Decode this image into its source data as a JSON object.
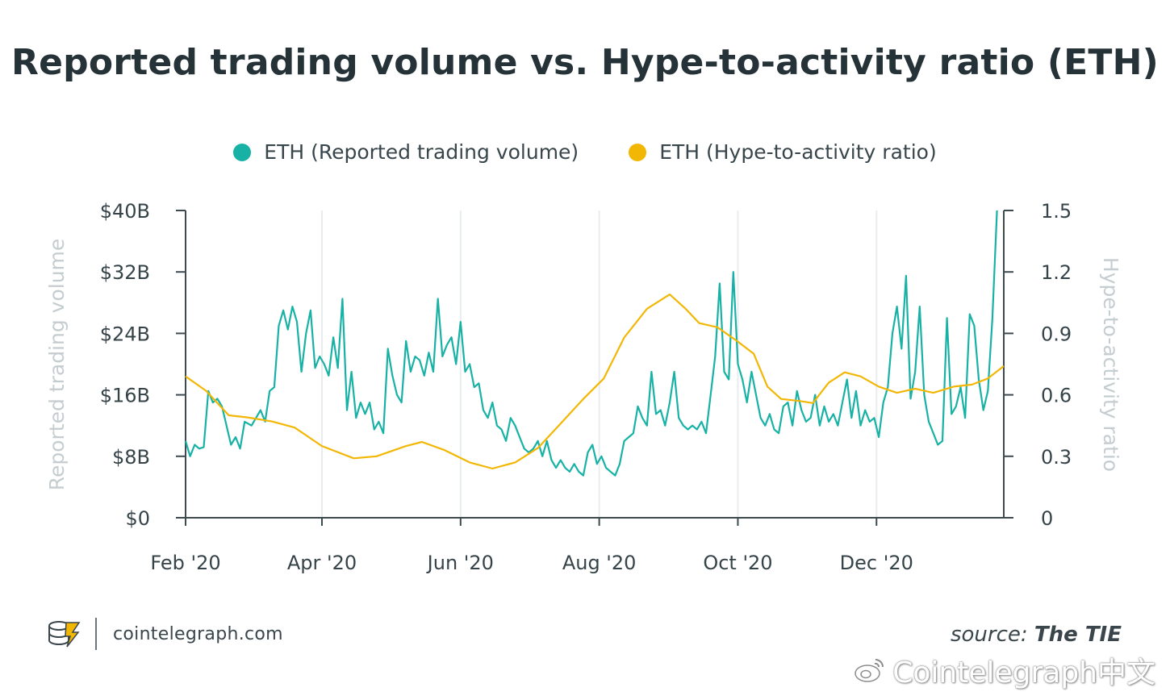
{
  "title": "Reported trading volume vs. Hype-to-activity ratio (ETH)",
  "legend": [
    {
      "label": "ETH (Reported trading volume)",
      "color": "#17b2a5"
    },
    {
      "label": "ETH (Hype-to-activity ratio)",
      "color": "#f2b705"
    }
  ],
  "footer": {
    "site": "cointelegraph.com",
    "source_prefix": "source:",
    "source_name": "The TIE",
    "watermark": "Cointelegraph中文"
  },
  "chart_data": {
    "type": "line",
    "x_range": [
      "2020-02-01",
      "2021-01-26"
    ],
    "x_tick_labels": [
      "Feb '20",
      "Apr '20",
      "Jun '20",
      "Aug '20",
      "Oct '20",
      "Dec '20"
    ],
    "y_left": {
      "label": "Reported trading volume",
      "ticks": [
        "$0",
        "$8B",
        "$16B",
        "$24B",
        "$32B",
        "$40B"
      ],
      "range": [
        0,
        40
      ]
    },
    "y_right": {
      "label": "Hype-to-activity ratio",
      "ticks": [
        "0",
        "0.3",
        "0.6",
        "0.9",
        "1.2",
        "1.5"
      ],
      "range": [
        0,
        1.5
      ]
    },
    "grid": "vertical",
    "series": [
      {
        "name": "ETH (Reported trading volume)",
        "axis": "left",
        "unit": "$B",
        "points": [
          [
            "2020-02-01",
            10.0
          ],
          [
            "2020-02-03",
            8.0
          ],
          [
            "2020-02-05",
            9.5
          ],
          [
            "2020-02-07",
            9.0
          ],
          [
            "2020-02-09",
            9.2
          ],
          [
            "2020-02-11",
            16.5
          ],
          [
            "2020-02-13",
            15.0
          ],
          [
            "2020-02-15",
            15.5
          ],
          [
            "2020-02-17",
            14.5
          ],
          [
            "2020-02-19",
            12.0
          ],
          [
            "2020-02-21",
            9.5
          ],
          [
            "2020-02-23",
            10.5
          ],
          [
            "2020-02-25",
            9.0
          ],
          [
            "2020-02-27",
            12.5
          ],
          [
            "2020-03-01",
            12.0
          ],
          [
            "2020-03-03",
            13.0
          ],
          [
            "2020-03-05",
            14.0
          ],
          [
            "2020-03-07",
            12.5
          ],
          [
            "2020-03-09",
            16.5
          ],
          [
            "2020-03-11",
            17.0
          ],
          [
            "2020-03-13",
            25.0
          ],
          [
            "2020-03-15",
            27.0
          ],
          [
            "2020-03-17",
            24.5
          ],
          [
            "2020-03-19",
            27.5
          ],
          [
            "2020-03-21",
            25.5
          ],
          [
            "2020-03-23",
            19.0
          ],
          [
            "2020-03-25",
            24.0
          ],
          [
            "2020-03-27",
            27.0
          ],
          [
            "2020-03-29",
            19.5
          ],
          [
            "2020-03-31",
            21.0
          ],
          [
            "2020-04-02",
            20.0
          ],
          [
            "2020-04-04",
            18.5
          ],
          [
            "2020-04-06",
            23.5
          ],
          [
            "2020-04-08",
            19.5
          ],
          [
            "2020-04-10",
            28.5
          ],
          [
            "2020-04-12",
            14.0
          ],
          [
            "2020-04-14",
            19.0
          ],
          [
            "2020-04-16",
            13.0
          ],
          [
            "2020-04-18",
            15.0
          ],
          [
            "2020-04-20",
            13.5
          ],
          [
            "2020-04-22",
            15.0
          ],
          [
            "2020-04-24",
            11.5
          ],
          [
            "2020-04-26",
            12.5
          ],
          [
            "2020-04-28",
            11.0
          ],
          [
            "2020-04-30",
            22.0
          ],
          [
            "2020-05-02",
            18.5
          ],
          [
            "2020-05-04",
            16.0
          ],
          [
            "2020-05-06",
            15.0
          ],
          [
            "2020-05-08",
            23.0
          ],
          [
            "2020-05-10",
            19.0
          ],
          [
            "2020-05-12",
            21.0
          ],
          [
            "2020-05-14",
            20.5
          ],
          [
            "2020-05-16",
            18.5
          ],
          [
            "2020-05-18",
            21.5
          ],
          [
            "2020-05-20",
            19.0
          ],
          [
            "2020-05-22",
            28.5
          ],
          [
            "2020-05-24",
            21.0
          ],
          [
            "2020-05-26",
            22.5
          ],
          [
            "2020-05-28",
            23.5
          ],
          [
            "2020-05-30",
            20.0
          ],
          [
            "2020-06-01",
            25.5
          ],
          [
            "2020-06-03",
            19.0
          ],
          [
            "2020-06-05",
            20.0
          ],
          [
            "2020-06-07",
            17.0
          ],
          [
            "2020-06-09",
            17.5
          ],
          [
            "2020-06-11",
            14.0
          ],
          [
            "2020-06-13",
            13.0
          ],
          [
            "2020-06-15",
            15.0
          ],
          [
            "2020-06-17",
            12.0
          ],
          [
            "2020-06-19",
            11.5
          ],
          [
            "2020-06-21",
            10.0
          ],
          [
            "2020-06-23",
            13.0
          ],
          [
            "2020-06-25",
            12.0
          ],
          [
            "2020-06-27",
            10.5
          ],
          [
            "2020-06-29",
            9.0
          ],
          [
            "2020-07-01",
            8.5
          ],
          [
            "2020-07-03",
            9.0
          ],
          [
            "2020-07-05",
            10.0
          ],
          [
            "2020-07-07",
            8.0
          ],
          [
            "2020-07-09",
            10.0
          ],
          [
            "2020-07-11",
            7.5
          ],
          [
            "2020-07-13",
            6.5
          ],
          [
            "2020-07-15",
            7.5
          ],
          [
            "2020-07-17",
            6.5
          ],
          [
            "2020-07-19",
            6.0
          ],
          [
            "2020-07-21",
            7.0
          ],
          [
            "2020-07-23",
            6.0
          ],
          [
            "2020-07-25",
            5.5
          ],
          [
            "2020-07-27",
            8.5
          ],
          [
            "2020-07-29",
            9.5
          ],
          [
            "2020-07-31",
            7.0
          ],
          [
            "2020-08-02",
            8.0
          ],
          [
            "2020-08-04",
            6.5
          ],
          [
            "2020-08-06",
            6.0
          ],
          [
            "2020-08-08",
            5.5
          ],
          [
            "2020-08-10",
            7.0
          ],
          [
            "2020-08-12",
            10.0
          ],
          [
            "2020-08-14",
            10.5
          ],
          [
            "2020-08-16",
            11.0
          ],
          [
            "2020-08-18",
            14.5
          ],
          [
            "2020-08-20",
            13.0
          ],
          [
            "2020-08-22",
            12.0
          ],
          [
            "2020-08-24",
            19.0
          ],
          [
            "2020-08-26",
            13.5
          ],
          [
            "2020-08-28",
            14.0
          ],
          [
            "2020-08-30",
            12.0
          ],
          [
            "2020-09-01",
            15.0
          ],
          [
            "2020-09-03",
            19.0
          ],
          [
            "2020-09-05",
            13.0
          ],
          [
            "2020-09-07",
            12.0
          ],
          [
            "2020-09-09",
            11.5
          ],
          [
            "2020-09-11",
            12.0
          ],
          [
            "2020-09-13",
            11.5
          ],
          [
            "2020-09-15",
            12.5
          ],
          [
            "2020-09-17",
            11.0
          ],
          [
            "2020-09-19",
            16.0
          ],
          [
            "2020-09-21",
            21.0
          ],
          [
            "2020-09-23",
            30.5
          ],
          [
            "2020-09-25",
            19.0
          ],
          [
            "2020-09-27",
            18.0
          ],
          [
            "2020-09-29",
            32.0
          ],
          [
            "2020-10-01",
            20.0
          ],
          [
            "2020-10-03",
            18.0
          ],
          [
            "2020-10-05",
            15.0
          ],
          [
            "2020-10-07",
            19.0
          ],
          [
            "2020-10-09",
            16.0
          ],
          [
            "2020-10-11",
            13.0
          ],
          [
            "2020-10-13",
            12.0
          ],
          [
            "2020-10-15",
            13.5
          ],
          [
            "2020-10-17",
            11.5
          ],
          [
            "2020-10-19",
            11.0
          ],
          [
            "2020-10-21",
            14.5
          ],
          [
            "2020-10-23",
            15.0
          ],
          [
            "2020-10-25",
            12.0
          ],
          [
            "2020-10-27",
            16.5
          ],
          [
            "2020-10-29",
            14.0
          ],
          [
            "2020-10-31",
            12.5
          ],
          [
            "2020-11-02",
            13.0
          ],
          [
            "2020-11-04",
            16.0
          ],
          [
            "2020-11-06",
            12.0
          ],
          [
            "2020-11-08",
            14.5
          ],
          [
            "2020-11-10",
            12.5
          ],
          [
            "2020-11-12",
            13.5
          ],
          [
            "2020-11-14",
            12.0
          ],
          [
            "2020-11-16",
            15.0
          ],
          [
            "2020-11-18",
            18.0
          ],
          [
            "2020-11-20",
            13.0
          ],
          [
            "2020-11-22",
            16.5
          ],
          [
            "2020-11-24",
            12.0
          ],
          [
            "2020-11-26",
            14.0
          ],
          [
            "2020-11-28",
            12.5
          ],
          [
            "2020-11-30",
            13.0
          ],
          [
            "2020-12-02",
            10.5
          ],
          [
            "2020-12-04",
            15.0
          ],
          [
            "2020-12-06",
            17.0
          ],
          [
            "2020-12-08",
            24.0
          ],
          [
            "2020-12-10",
            27.5
          ],
          [
            "2020-12-12",
            22.0
          ],
          [
            "2020-12-14",
            31.5
          ],
          [
            "2020-12-16",
            15.5
          ],
          [
            "2020-12-18",
            19.0
          ],
          [
            "2020-12-20",
            27.5
          ],
          [
            "2020-12-22",
            16.0
          ],
          [
            "2020-12-24",
            12.5
          ],
          [
            "2020-12-26",
            11.0
          ],
          [
            "2020-12-28",
            9.5
          ],
          [
            "2020-12-30",
            10.0
          ],
          [
            "2021-01-01",
            26.0
          ],
          [
            "2021-01-03",
            13.5
          ],
          [
            "2021-01-05",
            14.5
          ],
          [
            "2021-01-07",
            17.0
          ],
          [
            "2021-01-09",
            13.0
          ],
          [
            "2021-01-11",
            26.5
          ],
          [
            "2021-01-13",
            25.0
          ],
          [
            "2021-01-15",
            18.0
          ],
          [
            "2021-01-17",
            14.0
          ],
          [
            "2021-01-19",
            16.5
          ],
          [
            "2021-01-21",
            26.0
          ],
          [
            "2021-01-23",
            40.0
          ]
        ]
      },
      {
        "name": "ETH (Hype-to-activity ratio)",
        "axis": "right",
        "points": [
          [
            "2020-02-01",
            0.69
          ],
          [
            "2020-02-10",
            0.62
          ],
          [
            "2020-02-20",
            0.5
          ],
          [
            "2020-02-28",
            0.49
          ],
          [
            "2020-03-10",
            0.47
          ],
          [
            "2020-03-20",
            0.44
          ],
          [
            "2020-04-01",
            0.35
          ],
          [
            "2020-04-15",
            0.29
          ],
          [
            "2020-04-25",
            0.3
          ],
          [
            "2020-05-08",
            0.35
          ],
          [
            "2020-05-15",
            0.37
          ],
          [
            "2020-05-25",
            0.33
          ],
          [
            "2020-06-05",
            0.27
          ],
          [
            "2020-06-15",
            0.24
          ],
          [
            "2020-06-25",
            0.27
          ],
          [
            "2020-07-05",
            0.34
          ],
          [
            "2020-07-15",
            0.46
          ],
          [
            "2020-07-25",
            0.58
          ],
          [
            "2020-08-03",
            0.68
          ],
          [
            "2020-08-12",
            0.88
          ],
          [
            "2020-08-22",
            1.02
          ],
          [
            "2020-09-01",
            1.09
          ],
          [
            "2020-09-08",
            1.02
          ],
          [
            "2020-09-14",
            0.95
          ],
          [
            "2020-09-22",
            0.93
          ],
          [
            "2020-10-01",
            0.86
          ],
          [
            "2020-10-08",
            0.8
          ],
          [
            "2020-10-14",
            0.64
          ],
          [
            "2020-10-20",
            0.58
          ],
          [
            "2020-10-28",
            0.57
          ],
          [
            "2020-11-03",
            0.56
          ],
          [
            "2020-11-10",
            0.66
          ],
          [
            "2020-11-17",
            0.71
          ],
          [
            "2020-11-24",
            0.69
          ],
          [
            "2020-12-02",
            0.64
          ],
          [
            "2020-12-10",
            0.61
          ],
          [
            "2020-12-18",
            0.63
          ],
          [
            "2020-12-26",
            0.61
          ],
          [
            "2021-01-04",
            0.64
          ],
          [
            "2021-01-12",
            0.65
          ],
          [
            "2021-01-19",
            0.68
          ],
          [
            "2021-01-26",
            0.74
          ]
        ]
      }
    ]
  }
}
